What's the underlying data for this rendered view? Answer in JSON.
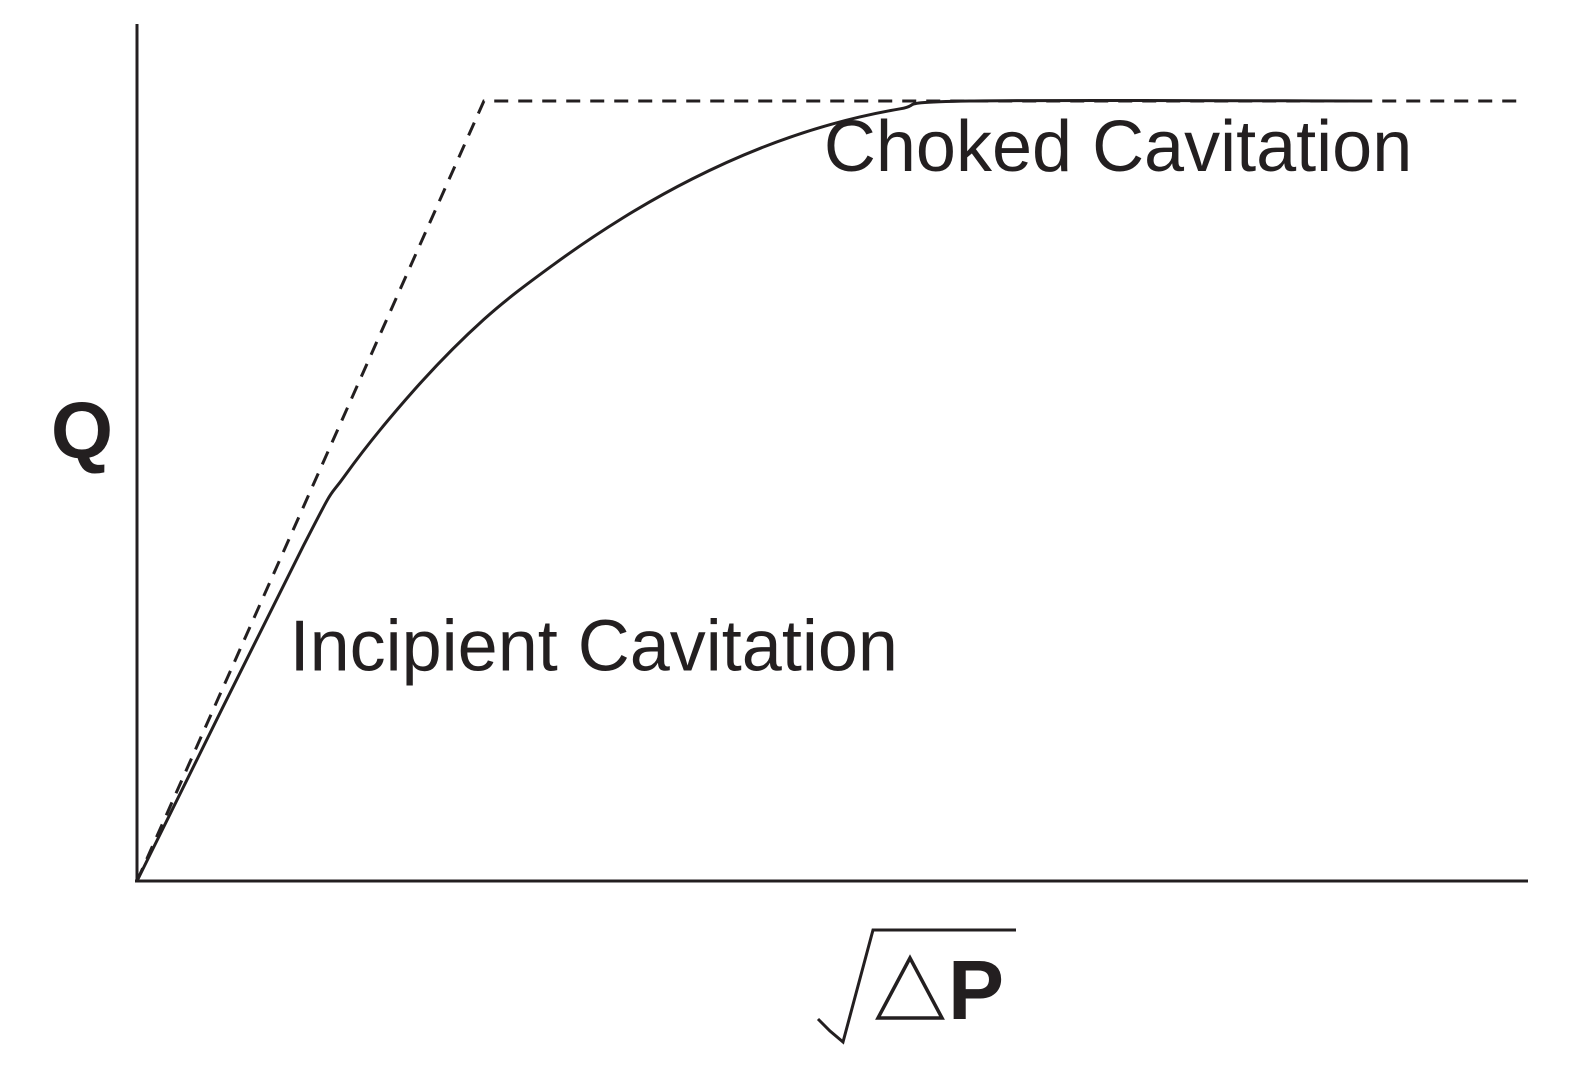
{
  "chart_data": {
    "type": "line",
    "title": "",
    "ylabel": "Q",
    "xlabel": {
      "radical": "√",
      "symbol": "∆",
      "variable": "P"
    },
    "xlim": [
      0,
      100
    ],
    "ylim": [
      0,
      100
    ],
    "grid": false,
    "legend": "none",
    "series": [
      {
        "style": "dashed",
        "points": [
          [
            0,
            0
          ],
          [
            25,
            100
          ],
          [
            100,
            100
          ]
        ]
      },
      {
        "style": "solid",
        "points": [
          [
            0,
            0
          ],
          [
            12,
            43
          ],
          [
            15,
            52
          ],
          [
            20,
            63
          ],
          [
            25,
            72
          ],
          [
            30,
            79
          ],
          [
            35,
            85
          ],
          [
            40,
            90
          ],
          [
            45,
            94
          ],
          [
            50,
            97
          ],
          [
            55,
            99
          ],
          [
            60,
            100
          ],
          [
            89,
            100
          ]
        ]
      }
    ],
    "annotations": [
      {
        "text": "Choked Cavitation",
        "x": 49.5,
        "y": 91
      },
      {
        "text": "Incipient Cavitation",
        "x": 11,
        "y": 27
      }
    ]
  },
  "colors": {
    "ink": "#231f20",
    "background": "#ffffff"
  }
}
